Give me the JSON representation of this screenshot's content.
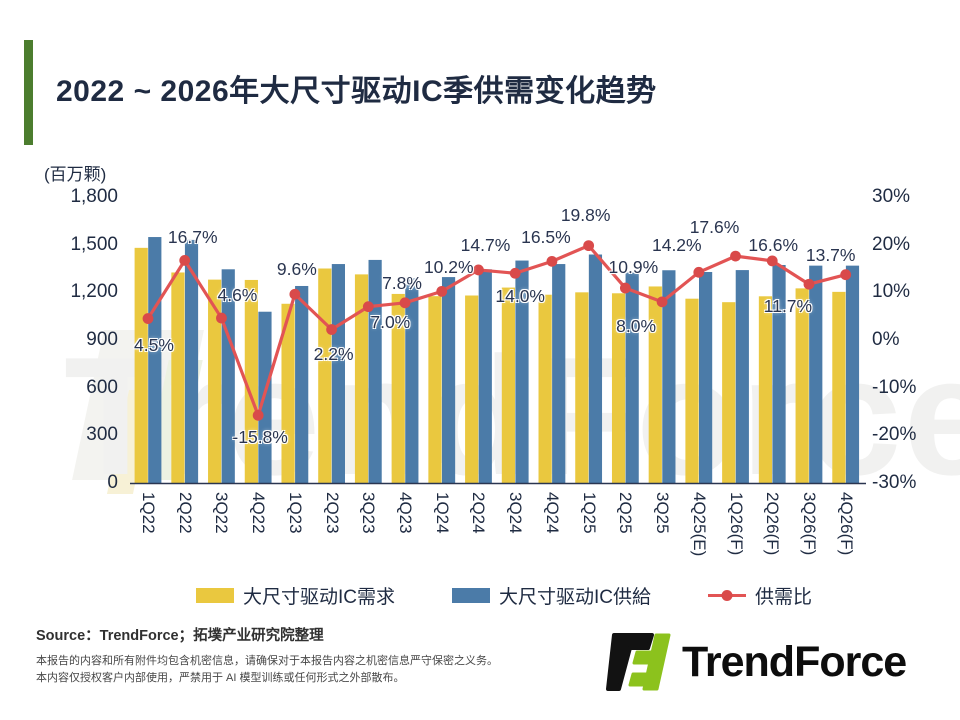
{
  "title": "2022 ~ 2026年大尺寸驱动IC季供需变化趋势",
  "watermark_text": "TrendForce",
  "chart_data": {
    "type": "combo-bar-line",
    "unit_label": "(百万颗)",
    "categories": [
      "1Q22",
      "2Q22",
      "3Q22",
      "4Q22",
      "1Q23",
      "2Q23",
      "3Q23",
      "4Q23",
      "1Q24",
      "2Q24",
      "3Q24",
      "4Q24",
      "1Q25",
      "2Q25",
      "3Q25",
      "4Q25(E)",
      "1Q26(F)",
      "2Q26(F)",
      "3Q26(F)",
      "4Q26(F)"
    ],
    "series": [
      {
        "name": "大尺寸驱动IC需求",
        "color": "#EAC83F",
        "values": [
          1480,
          1325,
          1280,
          1278,
          1128,
          1350,
          1313,
          1190,
          1176,
          1180,
          1230,
          1185,
          1200,
          1194,
          1237,
          1160,
          1138,
          1175,
          1225,
          1203
        ]
      },
      {
        "name": "大尺寸驱动IC供給",
        "color": "#4B7BA8",
        "values": [
          1548,
          1530,
          1345,
          1078,
          1240,
          1378,
          1404,
          1288,
          1296,
          1345,
          1400,
          1378,
          1438,
          1324,
          1339,
          1328,
          1340,
          1372,
          1368,
          1368
        ]
      }
    ],
    "line": {
      "name": "供需比",
      "color": "#E25454",
      "marker_color": "#D94A4A",
      "values": [
        4.5,
        16.7,
        4.6,
        -15.8,
        9.6,
        2.2,
        7.0,
        7.8,
        10.2,
        14.7,
        14.0,
        16.5,
        19.8,
        10.9,
        8.0,
        14.2,
        17.6,
        16.6,
        11.7,
        13.7
      ],
      "labels": [
        "4.5%",
        "16.7%",
        "4.6%",
        "-15.8%",
        "9.6%",
        "2.2%",
        "7.0%",
        "7.8%",
        "10.2%",
        "14.7%",
        "14.0%",
        "16.5%",
        "19.8%",
        "10.9%",
        "8.0%",
        "14.2%",
        "17.6%",
        "16.6%",
        "11.7%",
        "13.7%"
      ],
      "label_dx": [
        6,
        8,
        16,
        2,
        2,
        2,
        22,
        -3,
        7,
        7,
        5,
        -6,
        -3,
        8,
        -26,
        -22,
        -21,
        1,
        -21,
        -15
      ],
      "label_dy": [
        16,
        -33,
        -33,
        12,
        -35,
        14,
        5,
        -30,
        -34,
        -35,
        13,
        -34,
        -41,
        -31,
        14,
        -37,
        -39,
        -26,
        12,
        -30
      ]
    },
    "left_axis": {
      "ticks": [
        "1,800",
        "1,500",
        "1,200",
        "900",
        "600",
        "300",
        "0"
      ],
      "min": 0,
      "max": 1800
    },
    "right_axis": {
      "ticks": [
        "30%",
        "20%",
        "10%",
        "0%",
        "-10%",
        "-20%",
        "-30%"
      ],
      "min": -30,
      "max": 30
    },
    "legend_position": "bottom",
    "grid": false
  },
  "footer": {
    "source": "Source：TrendForce；拓墣产业研究院整理",
    "disclaimer1": "本报告的内容和所有附件均包含机密信息，请确保对于本报告内容之机密信息严守保密之义务。",
    "disclaimer2": "本内容仅授权客户内部使用，严禁用于 AI 模型训练或任何形式之外部散布。",
    "logo_text": "TrendForce"
  }
}
